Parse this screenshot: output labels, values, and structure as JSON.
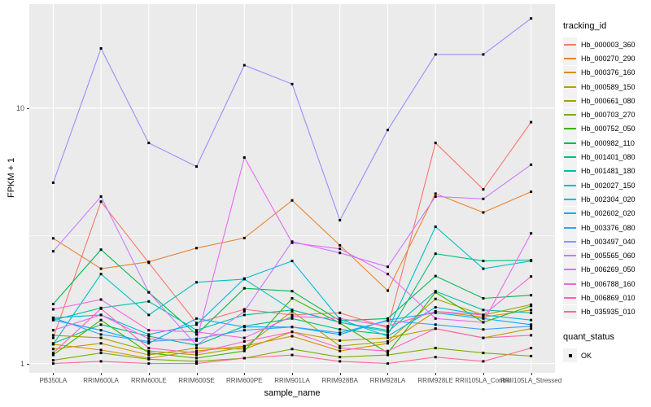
{
  "figure": {
    "background": "#FFFFFF",
    "panel_background": "#EBEBEB",
    "grid_color": "#FFFFFF",
    "tick_text_color": "#4D4D4D",
    "point_color": "#000000",
    "key_background": "#F2F2F2"
  },
  "chart_data": {
    "type": "line",
    "title": "",
    "xlabel": "sample_name",
    "ylabel": "FPKM + 1",
    "y_scale": "log10",
    "ylim": [
      0.92,
      25.5
    ],
    "y_ticks": [
      1,
      10
    ],
    "y_minor_gridlines": [
      3.1623
    ],
    "grid": "on",
    "legend_position": "right",
    "legend_title": "tracking_id",
    "point_marker": {
      "shape": "square",
      "color": "#000000",
      "label": "OK",
      "legend_title": "quant_status"
    },
    "categories": [
      "PB350LA",
      "RRIM600LA",
      "RRIM600LE",
      "RRIM600SE",
      "RRIM600PE",
      "RRIM901LA",
      "RRIM928BA",
      "RRIM928LA",
      "RRIM928LE",
      "RRII105LA_Control",
      "RRII105LA_Stressed"
    ],
    "series": [
      {
        "name": "Hb_000003_360",
        "color": "#F8766D",
        "values": [
          1.26,
          4.3,
          2.48,
          1.44,
          1.63,
          1.55,
          1.58,
          1.38,
          7.3,
          4.8,
          8.8
        ]
      },
      {
        "name": "Hb_000270_290",
        "color": "#EA8331",
        "values": [
          3.09,
          2.35,
          2.5,
          2.83,
          3.1,
          4.35,
          2.9,
          1.93,
          4.62,
          3.9,
          4.7
        ]
      },
      {
        "name": "Hb_000376_160",
        "color": "#D89000",
        "values": [
          1.19,
          1.13,
          1.05,
          1.12,
          1.17,
          1.28,
          1.12,
          1.2,
          1.6,
          1.52,
          1.62
        ]
      },
      {
        "name": "Hb_000589_150",
        "color": "#C09B00",
        "values": [
          1.14,
          1.2,
          1.08,
          1.15,
          1.14,
          1.33,
          1.23,
          1.26,
          1.37,
          1.26,
          1.37
        ]
      },
      {
        "name": "Hb_000661_080",
        "color": "#A3A500",
        "values": [
          1.29,
          1.26,
          1.12,
          1.08,
          1.16,
          1.6,
          1.17,
          1.22,
          1.79,
          1.55,
          1.7
        ]
      },
      {
        "name": "Hb_000703_270",
        "color": "#7CAE00",
        "values": [
          1.03,
          1.1,
          1.04,
          1.02,
          1.05,
          1.14,
          1.06,
          1.08,
          1.15,
          1.1,
          1.07
        ]
      },
      {
        "name": "Hb_000752_050",
        "color": "#39B600",
        "values": [
          1.08,
          1.48,
          1.1,
          1.05,
          1.12,
          1.8,
          1.44,
          1.1,
          1.9,
          1.45,
          1.68
        ]
      },
      {
        "name": "Hb_000982_110",
        "color": "#00BB4E",
        "values": [
          1.71,
          2.79,
          1.9,
          1.3,
          1.97,
          1.92,
          1.47,
          1.5,
          2.2,
          1.8,
          1.85
        ]
      },
      {
        "name": "Hb_001401_080",
        "color": "#00BF7D",
        "values": [
          1.2,
          1.42,
          1.28,
          1.18,
          1.4,
          1.5,
          1.36,
          1.3,
          2.69,
          2.52,
          2.54
        ]
      },
      {
        "name": "Hb_001481_180",
        "color": "#00C1A3",
        "values": [
          1.48,
          1.65,
          1.75,
          1.35,
          1.55,
          1.62,
          1.45,
          1.33,
          1.92,
          1.62,
          1.58
        ]
      },
      {
        "name": "Hb_002027_150",
        "color": "#00BFC4",
        "values": [
          1.19,
          2.24,
          1.55,
          2.08,
          2.14,
          1.62,
          1.45,
          1.35,
          3.43,
          2.35,
          2.52
        ]
      },
      {
        "name": "Hb_002304_020",
        "color": "#00BAE0",
        "values": [
          1.51,
          1.55,
          1.3,
          1.42,
          2.15,
          2.52,
          1.49,
          1.28,
          1.66,
          1.55,
          1.48
        ]
      },
      {
        "name": "Hb_002602_020",
        "color": "#00B0F6",
        "values": [
          1.48,
          1.35,
          1.2,
          1.5,
          1.39,
          1.39,
          1.3,
          1.48,
          1.58,
          1.5,
          1.42
        ]
      },
      {
        "name": "Hb_003376_080",
        "color": "#35A2FF",
        "values": [
          1.51,
          1.3,
          1.22,
          1.25,
          1.35,
          1.39,
          1.32,
          1.47,
          1.42,
          1.36,
          1.4
        ]
      },
      {
        "name": "Hb_003497_040",
        "color": "#9590FF",
        "values": [
          5.1,
          17.1,
          7.3,
          5.9,
          14.7,
          12.4,
          3.64,
          8.2,
          16.2,
          16.2,
          22.4
        ]
      },
      {
        "name": "Hb_005565_060",
        "color": "#C77CFF",
        "values": [
          2.75,
          4.5,
          1.9,
          1.18,
          1.6,
          3.0,
          2.71,
          2.39,
          4.5,
          4.41,
          6.0
        ]
      },
      {
        "name": "Hb_006269_050",
        "color": "#E76BF3",
        "values": [
          1.35,
          1.55,
          1.25,
          1.23,
          6.4,
          2.97,
          2.81,
          2.24,
          1.5,
          1.45,
          3.23
        ]
      },
      {
        "name": "Hb_006788_160",
        "color": "#FA62DB",
        "values": [
          1.63,
          1.78,
          1.35,
          1.33,
          1.26,
          1.53,
          1.5,
          1.4,
          1.6,
          1.55,
          2.19
        ]
      },
      {
        "name": "Hb_006869_010",
        "color": "#FF62BC",
        "values": [
          1.1,
          1.64,
          1.15,
          1.1,
          1.22,
          1.33,
          1.15,
          1.12,
          1.37,
          1.26,
          1.29
        ]
      },
      {
        "name": "Hb_035935_010",
        "color": "#FF6A98",
        "values": [
          1.0,
          1.02,
          1.0,
          1.0,
          1.05,
          1.08,
          1.02,
          1.0,
          1.06,
          1.02,
          1.15
        ]
      }
    ]
  }
}
